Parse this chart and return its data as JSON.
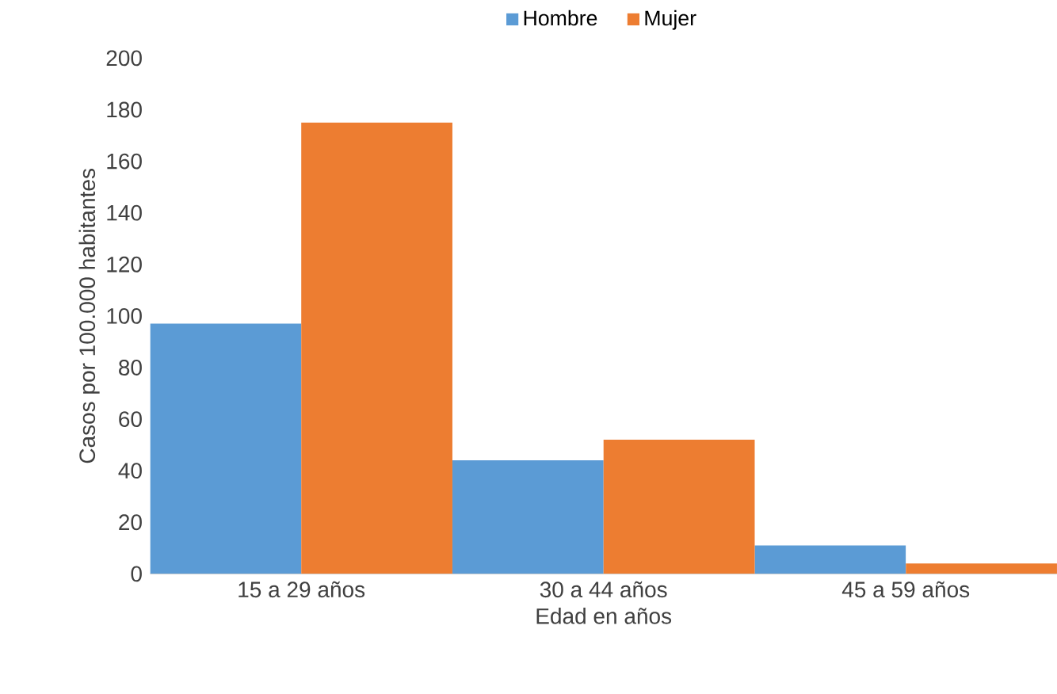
{
  "chart_data": {
    "type": "bar",
    "xlabel": "Edad en años",
    "ylabel": "Casos por 100.000 habitantes",
    "categories": [
      "15 a 29 años",
      "30 a 44 años",
      "45 a 59 años"
    ],
    "series": [
      {
        "name": "Hombre",
        "color": "#5b9bd5",
        "values": [
          97,
          44,
          11
        ]
      },
      {
        "name": "Mujer",
        "color": "#ed7d31",
        "values": [
          175,
          52,
          4
        ]
      }
    ],
    "ylim": [
      0,
      200
    ],
    "yticks": [
      0,
      20,
      40,
      60,
      80,
      100,
      120,
      140,
      160,
      180,
      200
    ],
    "grid": false,
    "legend": "top"
  }
}
